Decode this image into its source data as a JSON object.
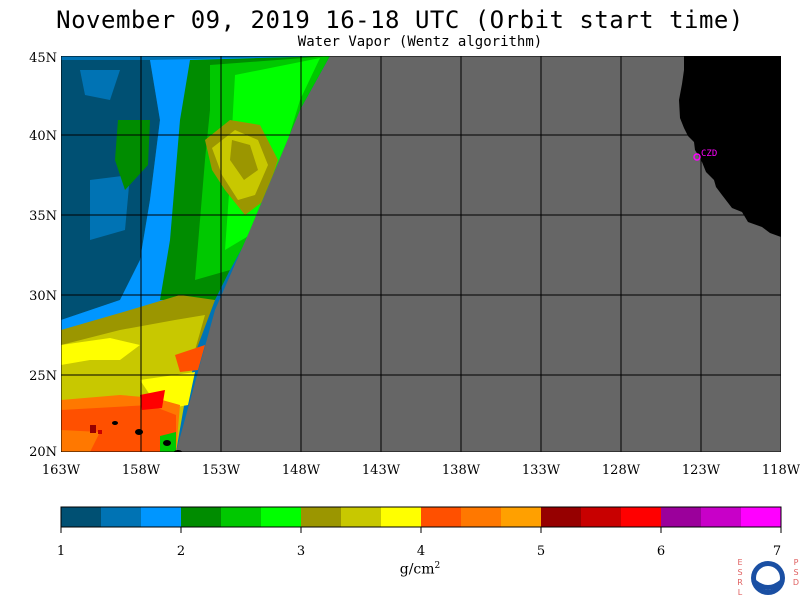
{
  "title": "November 09, 2019  16-18 UTC  (Orbit start time)",
  "subtitle": "Water Vapor (Wentz algorithm)",
  "map": {
    "lon_range": [
      -163,
      -118
    ],
    "lat_range": [
      19.8,
      45
    ],
    "lat_ticks": [
      "20N",
      "25N",
      "30N",
      "35N",
      "40N",
      "45N"
    ],
    "lon_ticks": [
      "163W",
      "158W",
      "153W",
      "148W",
      "143W",
      "138W",
      "133W",
      "128W",
      "123W",
      "118W"
    ],
    "nodata_color": "#666666",
    "land_color": "#000000",
    "grid_color": "#000000",
    "station": {
      "label": "CZD",
      "color": "#ff00ff"
    }
  },
  "colorbar": {
    "min": 1,
    "max": 7,
    "labels": [
      "1",
      "2",
      "3",
      "4",
      "5",
      "6",
      "7"
    ],
    "colors": [
      "#005073",
      "#0073b4",
      "#0096ff",
      "#008c00",
      "#00c800",
      "#00ff00",
      "#9b9600",
      "#c8c800",
      "#ffff00",
      "#ff5000",
      "#ff7800",
      "#ffa000",
      "#960000",
      "#c80000",
      "#ff0000",
      "#9b009b",
      "#c800c8",
      "#ff00ff"
    ],
    "unit_base": "g/cm",
    "unit_exp": "2"
  },
  "logo": {
    "left_letters": "ESRL",
    "right_letters": "PSD",
    "name": "NOAA"
  }
}
